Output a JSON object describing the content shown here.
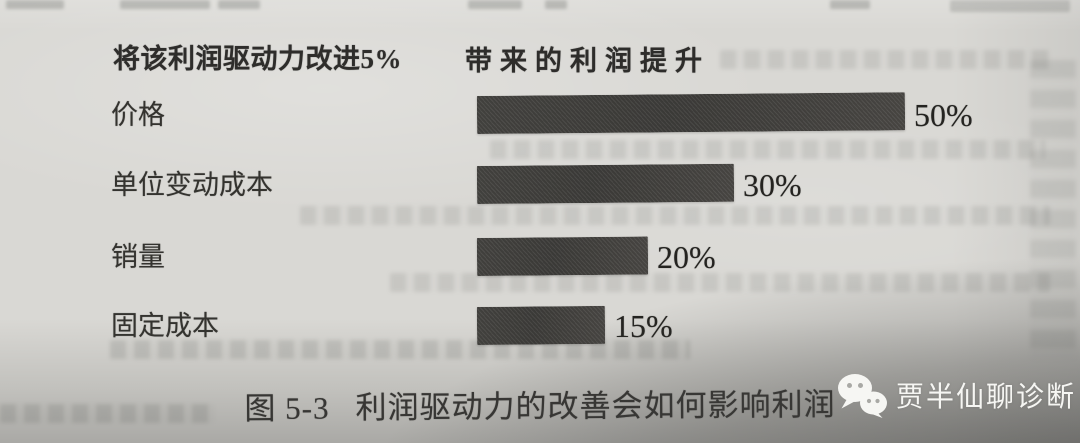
{
  "photo": {
    "page_background": "#d9d8d4",
    "corner_shadow": "#5a5a58"
  },
  "chart_data": {
    "type": "bar",
    "orientation": "horizontal",
    "column_headers": [
      "将该利润驱动力改进5%",
      "带来的利润提升"
    ],
    "categories": [
      "价格",
      "单位变动成本",
      "销量",
      "固定成本"
    ],
    "values": [
      50,
      30,
      20,
      15
    ],
    "value_labels": [
      "50%",
      "30%",
      "20%",
      "15%"
    ],
    "unit": "%",
    "xlim": [
      0,
      50
    ],
    "grid": false,
    "legend": false,
    "bar_color": "#454441",
    "figure_label": "图 5-3",
    "title": "利润驱动力的改善会如何影响利润",
    "xlabel": "",
    "ylabel": ""
  },
  "watermark": {
    "icon": "wechat-icon",
    "text": "贾半仙聊诊断",
    "text_color": "#f6f6f3"
  }
}
